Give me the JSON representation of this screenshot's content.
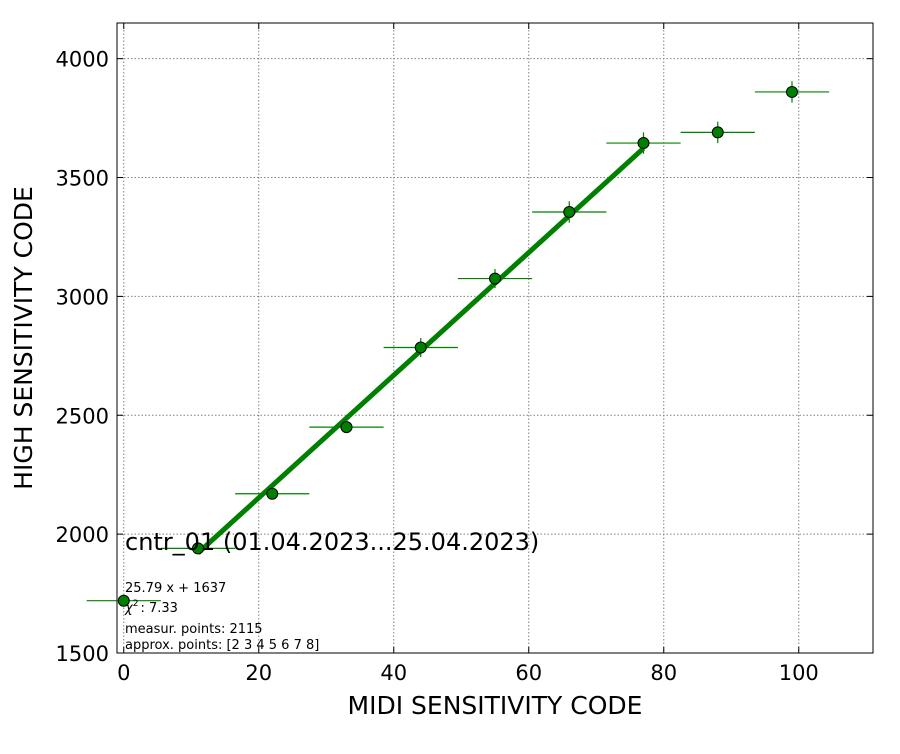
{
  "chart_data": {
    "type": "scatter",
    "xlabel": "MIDI SENSITIVITY CODE",
    "ylabel": "HIGH SENSITIVITY CODE",
    "xlim": [
      -1,
      111
    ],
    "ylim": [
      1500,
      4150
    ],
    "xticks": [
      0,
      20,
      40,
      60,
      80,
      100
    ],
    "yticks": [
      1500,
      2000,
      2500,
      3000,
      3500,
      4000
    ],
    "grid": true,
    "colors": {
      "marker": "#008000",
      "marker_edge": "#000000",
      "fit_line": "#008000",
      "grid": "#808080"
    },
    "points": [
      {
        "x": 0,
        "y": 1720,
        "xerr": 5.5,
        "yerr": 15
      },
      {
        "x": 11,
        "y": 1940,
        "xerr": 5.5,
        "yerr": 20
      },
      {
        "x": 22,
        "y": 2170,
        "xerr": 5.5,
        "yerr": 20
      },
      {
        "x": 33,
        "y": 2450,
        "xerr": 5.5,
        "yerr": 25
      },
      {
        "x": 44,
        "y": 2785,
        "xerr": 5.5,
        "yerr": 40
      },
      {
        "x": 55,
        "y": 3075,
        "xerr": 5.5,
        "yerr": 40
      },
      {
        "x": 66,
        "y": 3355,
        "xerr": 5.5,
        "yerr": 45
      },
      {
        "x": 77,
        "y": 3645,
        "xerr": 5.5,
        "yerr": 45
      },
      {
        "x": 88,
        "y": 3690,
        "xerr": 5.5,
        "yerr": 45
      },
      {
        "x": 99,
        "y": 3860,
        "xerr": 5.5,
        "yerr": 45
      }
    ],
    "fit": {
      "slope": 25.79,
      "intercept": 1637,
      "x_range": [
        11,
        77
      ]
    },
    "annotations": {
      "title_text": "cntr_01 (01.04.2023...25.04.2023)",
      "fit_formula": "25.79 x + 1637",
      "chi2_label": "χ",
      "chi2_sup": "2",
      "chi2_value": ": 7.33",
      "measur_points": "measur. points: 2115",
      "approx_points": "approx. points: [2 3 4 5 6 7 8]"
    }
  }
}
